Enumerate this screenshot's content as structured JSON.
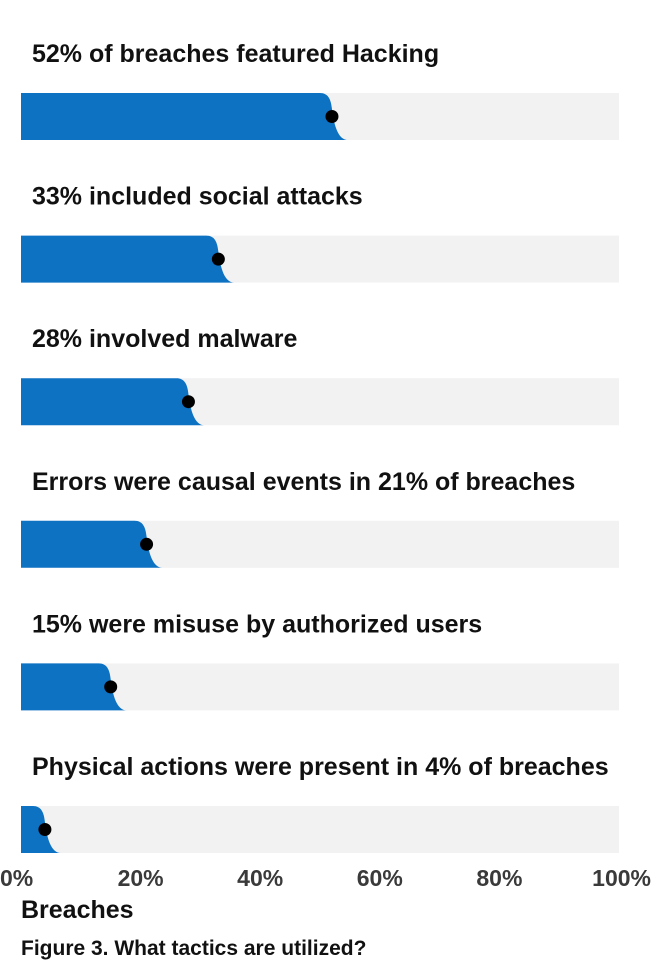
{
  "chart_data": {
    "type": "bar",
    "orientation": "horizontal",
    "categories": [
      "52% of breaches featured Hacking",
      "33% included social attacks",
      "28% involved malware",
      "Errors were causal events in 21% of breaches",
      "15% were misuse by authorized users",
      "Physical actions were present in 4% of breaches"
    ],
    "values": [
      52,
      33,
      28,
      21,
      15,
      4
    ],
    "xlabel": "Breaches",
    "xlim": [
      0,
      100
    ],
    "x_ticks": [
      "0%",
      "20%",
      "40%",
      "60%",
      "80%",
      "100%"
    ],
    "grid": false,
    "colors": {
      "bar": "#0e72c3",
      "track": "#f2f2f2",
      "marker": "#000000"
    }
  },
  "caption": "Figure 3. What tactics are utilized?"
}
